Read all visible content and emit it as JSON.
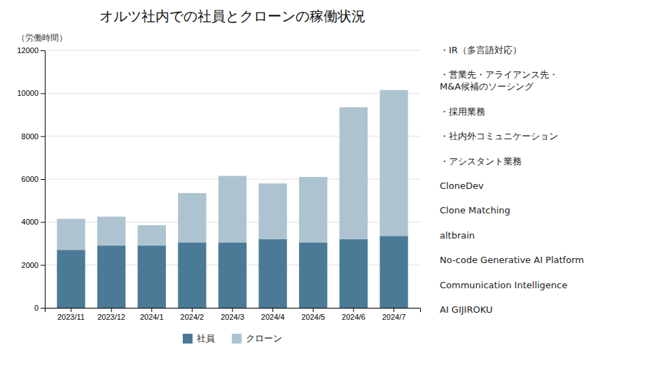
{
  "chart_data": {
    "type": "bar",
    "stacked": true,
    "title": "オルツ社内での社員とクローンの稼働状況",
    "ylabel": "（労働時間）",
    "categories": [
      "2023/11",
      "2023/12",
      "2024/1",
      "2024/2",
      "2024/3",
      "2024/4",
      "2024/5",
      "2024/6",
      "2024/7"
    ],
    "series": [
      {
        "name": "社員",
        "color": "#4a7a96",
        "values": [
          2700,
          2900,
          2900,
          3050,
          3050,
          3200,
          3050,
          3200,
          3350
        ]
      },
      {
        "name": "クローン",
        "color": "#adc4d0",
        "values": [
          1450,
          1350,
          950,
          2300,
          3100,
          2600,
          3050,
          6150,
          6800
        ]
      }
    ],
    "ylim": [
      0,
      12000
    ],
    "yticks": [
      0,
      2000,
      4000,
      6000,
      8000,
      10000,
      12000
    ],
    "grid": true,
    "legend": "bottom",
    "annotations": [
      "・IR（多言語対応）",
      "・営業先・アライアンス先・\nM&A候補のソーシング",
      "・採用業務",
      "・社内外コミュニケーション",
      "・アシスタント業務",
      "CloneDev",
      "Clone Matching",
      "altbrain",
      "No-code Generative AI Platform",
      "Communication Intelligence",
      "AI GIJIROKU"
    ]
  }
}
